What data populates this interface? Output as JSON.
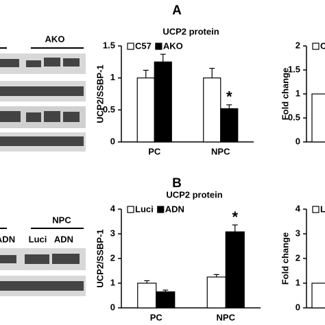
{
  "panels": {
    "a": "A",
    "b": "B"
  },
  "blots": {
    "top": {
      "group": "AKO"
    },
    "bottom": {
      "group": "NPC",
      "lanes": [
        "ADN",
        "Luci",
        "ADN"
      ]
    }
  },
  "chart_data": [
    {
      "type": "bar",
      "title": "UCP2 protein",
      "y_label": "UCP2/SSBP-1",
      "categories": [
        "PC",
        "NPC"
      ],
      "series": [
        {
          "name": "C57",
          "color": "#ffffff",
          "values": [
            1.0,
            1.0
          ],
          "errors": [
            0.12,
            0.15
          ]
        },
        {
          "name": "AKO",
          "color": "#000000",
          "values": [
            1.25,
            0.52
          ],
          "errors": [
            0.12,
            0.06
          ]
        }
      ],
      "annotations": [
        {
          "text": "*",
          "category": 1
        }
      ],
      "ylim": [
        0,
        1.5
      ],
      "yticks": [
        0,
        0.5,
        1,
        1.5
      ]
    },
    {
      "type": "bar",
      "y_label": "Fold change",
      "categories": [
        null
      ],
      "series": [
        {
          "name": "C",
          "color": "#ffffff",
          "values": [
            1
          ]
        }
      ],
      "ylim": [
        0,
        2
      ],
      "yticks": [
        0,
        0.5,
        1,
        1.5,
        2
      ]
    },
    {
      "type": "bar",
      "title": "UCP2 protein",
      "y_label": "UCP2/SSBP-1",
      "categories": [
        "PC",
        "NPC"
      ],
      "series": [
        {
          "name": "Luci",
          "color": "#ffffff",
          "values": [
            1.0,
            1.25
          ],
          "errors": [
            0.1,
            0.1
          ]
        },
        {
          "name": "ADN",
          "color": "#000000",
          "values": [
            0.65,
            3.08
          ],
          "errors": [
            0.07,
            0.28
          ]
        }
      ],
      "annotations": [
        {
          "text": "*",
          "category": 1
        }
      ],
      "ylim": [
        0,
        4
      ],
      "yticks": [
        0,
        1,
        2,
        3,
        4
      ]
    },
    {
      "type": "bar",
      "y_label": "Fold change",
      "categories": [
        null
      ],
      "series": [
        {
          "name": "L",
          "color": "#ffffff",
          "values": [
            1
          ]
        }
      ],
      "ylim": [
        0,
        4
      ],
      "yticks": [
        0,
        1,
        2,
        3,
        4
      ]
    }
  ]
}
